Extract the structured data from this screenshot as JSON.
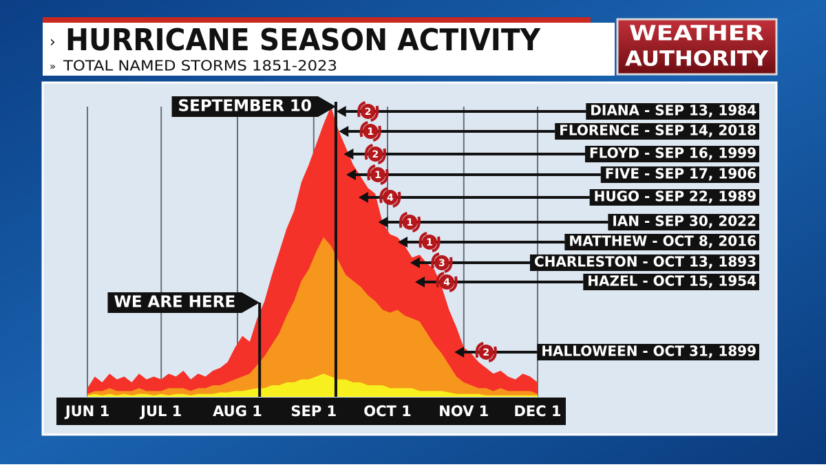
{
  "brand": {
    "line1": "WEATHER",
    "line2": "AUTHORITY"
  },
  "chart_data": {
    "type": "area",
    "title": "HURRICANE SEASON ACTIVITY",
    "subtitle": "TOTAL NAMED STORMS 1851-2023",
    "x": [
      0,
      3,
      6,
      9,
      12,
      15,
      18,
      21,
      24,
      27,
      30,
      33,
      36,
      39,
      42,
      45,
      48,
      51,
      54,
      57,
      60,
      63,
      66,
      69,
      72,
      75,
      78,
      81,
      84,
      87,
      90,
      93,
      96,
      99,
      102,
      105,
      108,
      111,
      114,
      117,
      120,
      123,
      126,
      129,
      132,
      135,
      138,
      141,
      144,
      147,
      150,
      153,
      156,
      159,
      162,
      165,
      168,
      171,
      174,
      177,
      180,
      183
    ],
    "xlim": [
      0,
      183
    ],
    "xticks": [
      {
        "value": 0,
        "label": "JUN 1"
      },
      {
        "value": 30,
        "label": "JUL 1"
      },
      {
        "value": 61,
        "label": "AUG 1"
      },
      {
        "value": 92,
        "label": "SEP 1"
      },
      {
        "value": 122,
        "label": "OCT 1"
      },
      {
        "value": 153,
        "label": "NOV 1"
      },
      {
        "value": 183,
        "label": "DEC 1"
      }
    ],
    "ylim": [
      0,
      100
    ],
    "grid": true,
    "series": [
      {
        "color": "#f5322a",
        "values": [
          3,
          7,
          5,
          8,
          6,
          7,
          5,
          8,
          6,
          7,
          6,
          8,
          7,
          9,
          6,
          8,
          7,
          9,
          10,
          12,
          17,
          21,
          19,
          27,
          33,
          42,
          50,
          58,
          64,
          74,
          80,
          87,
          94,
          100,
          92,
          86,
          80,
          76,
          72,
          70,
          60,
          56,
          55,
          52,
          48,
          49,
          46,
          44,
          38,
          30,
          24,
          17,
          15,
          12,
          10,
          8,
          9,
          7,
          6,
          8,
          7,
          5
        ]
      },
      {
        "color": "#f7961c",
        "values": [
          1,
          2,
          2,
          3,
          2,
          2,
          2,
          3,
          2,
          2,
          2,
          3,
          3,
          3,
          2,
          3,
          3,
          4,
          4,
          5,
          6,
          7,
          8,
          11,
          14,
          18,
          22,
          28,
          33,
          40,
          44,
          50,
          55,
          52,
          47,
          42,
          40,
          38,
          35,
          33,
          30,
          29,
          30,
          28,
          27,
          26,
          22,
          18,
          15,
          11,
          7,
          5,
          4,
          3,
          3,
          2,
          3,
          2,
          2,
          2,
          2,
          1
        ]
      },
      {
        "color": "#f7f01e",
        "values": [
          0.5,
          1,
          0.5,
          1,
          0.5,
          1,
          0.5,
          1,
          1,
          0.5,
          1,
          0.5,
          1,
          1,
          0.5,
          1,
          1,
          1,
          1.5,
          1.5,
          2,
          2,
          2.5,
          3,
          3,
          4,
          4,
          5,
          5,
          6,
          6,
          7,
          8,
          7,
          6,
          6,
          5,
          5,
          4,
          4,
          4,
          3,
          3,
          3,
          3,
          2,
          2,
          2,
          2,
          1.5,
          1,
          1,
          1,
          1,
          0.5,
          0.5,
          0.5,
          0.5,
          0.5,
          0.5,
          0.5,
          0.5
        ]
      }
    ],
    "annotations": [
      {
        "text": "SEPTEMBER 10",
        "x": 101
      },
      {
        "text": "WE ARE HERE",
        "x": 70
      }
    ],
    "storms": [
      {
        "text": "DIANA - SEP 13, 1984",
        "category": 2,
        "x": 104
      },
      {
        "text": "FLORENCE - SEP 14, 2018",
        "category": 1,
        "x": 105
      },
      {
        "text": "FLOYD - SEP 16, 1999",
        "category": 2,
        "x": 107
      },
      {
        "text": "FIVE - SEP 17, 1906",
        "category": 1,
        "x": 108
      },
      {
        "text": "HUGO - SEP 22, 1989",
        "category": 4,
        "x": 113
      },
      {
        "text": "IAN - SEP 30, 2022",
        "category": 1,
        "x": 121
      },
      {
        "text": "MATTHEW - OCT 8, 2016",
        "category": 1,
        "x": 129
      },
      {
        "text": "CHARLESTON - OCT 13, 1893",
        "category": 3,
        "x": 134
      },
      {
        "text": "HAZEL - OCT 15, 1954",
        "category": 4,
        "x": 136
      },
      {
        "text": "HALLOWEEN - OCT 31, 1899",
        "category": 2,
        "x": 152
      }
    ]
  }
}
